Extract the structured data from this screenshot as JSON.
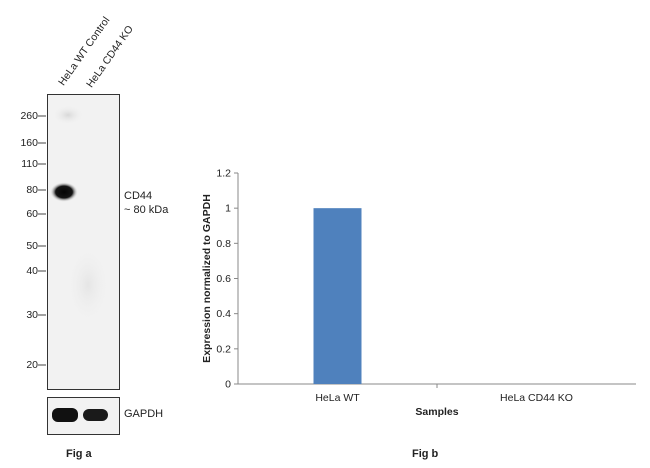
{
  "fig_a": {
    "lanes": [
      "HeLa WT Control",
      "HeLa CD44 KO"
    ],
    "markers": [
      "260",
      "160",
      "110",
      "80",
      "60",
      "50",
      "40",
      "30",
      "20"
    ],
    "band_label_line1": "CD44",
    "band_label_line2": "~ 80 kDa",
    "loading_label": "GAPDH",
    "caption": "Fig a"
  },
  "fig_b": {
    "caption": "Fig b"
  },
  "chart_data": {
    "type": "bar",
    "categories": [
      "HeLa WT",
      "HeLa CD44 KO"
    ],
    "values": [
      1,
      0
    ],
    "xlabel": "Samples",
    "ylabel": "Expression  normalized to GAPDH",
    "ylim": [
      0,
      1.2
    ],
    "yticks": [
      0,
      0.2,
      0.4,
      0.6,
      0.8,
      1,
      1.2
    ],
    "bar_color": "#4f81bd",
    "grid": false,
    "legend": "none"
  }
}
